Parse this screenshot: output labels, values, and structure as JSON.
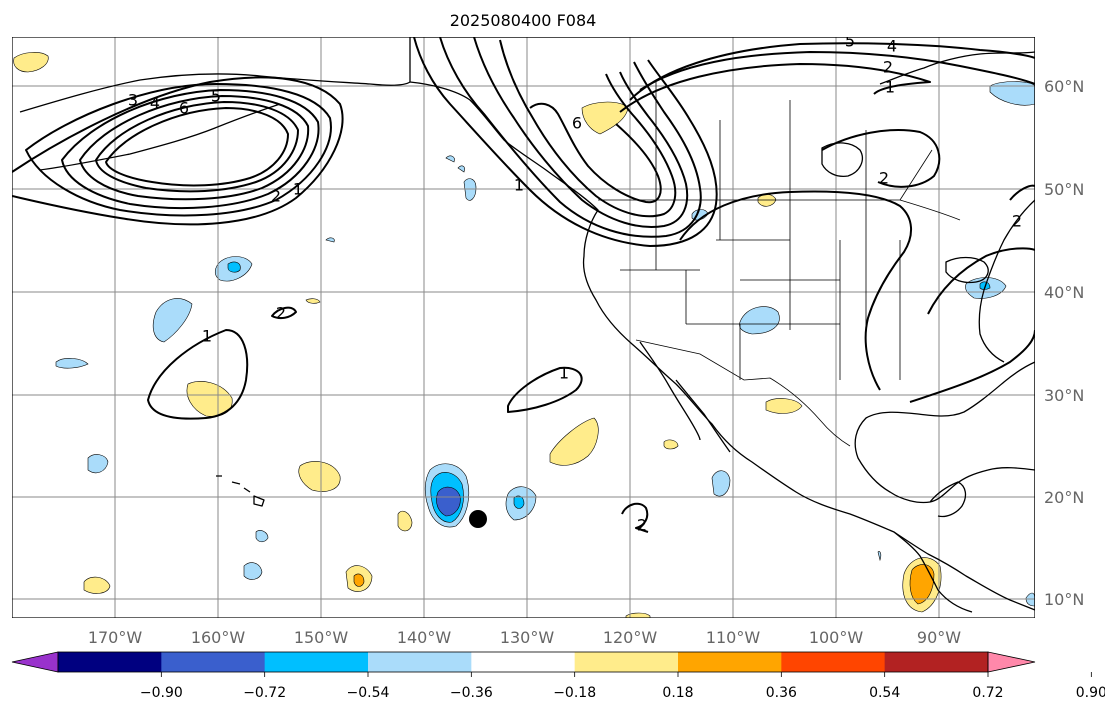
{
  "title": "2025080400 F084",
  "x_axis": {
    "ticks": [
      "170°W",
      "160°W",
      "150°W",
      "140°W",
      "130°W",
      "120°W",
      "110°W",
      "100°W",
      "90°W"
    ]
  },
  "y_axis": {
    "ticks": [
      "60°N",
      "50°N",
      "40°N",
      "30°N",
      "20°N",
      "10°N"
    ]
  },
  "colorbar": {
    "colors": [
      "#9932cc",
      "#000080",
      "#3a5fcd",
      "#00bfff",
      "#aadcfa",
      "#ffffff",
      "#ffec8b",
      "#ffa500",
      "#ff4500",
      "#b22222",
      "#ff88aa"
    ],
    "ticks": [
      "−0.90",
      "−0.72",
      "−0.54",
      "−0.36",
      "−0.18",
      "0.18",
      "0.36",
      "0.54",
      "0.72",
      "0.90"
    ],
    "extend": "both"
  },
  "contour_labels": [
    "3",
    "4",
    "6",
    "5",
    "2",
    "1",
    "2",
    "1",
    "1",
    "6",
    "1",
    "5",
    "4",
    "2",
    "1",
    "2",
    "2",
    "2"
  ],
  "marker": {
    "label": "storm-center",
    "lon": -134.7,
    "lat": 17.7
  },
  "chart_data": {
    "type": "map",
    "projection": "plate-carree",
    "lon_range": [
      -180,
      -80
    ],
    "lat_range": [
      8,
      64
    ],
    "grid": true,
    "title": "2025080400 F084",
    "contour_levels_labeled": [
      1,
      2,
      3,
      4,
      5,
      6
    ],
    "fill_levels": [
      -0.9,
      -0.72,
      -0.54,
      -0.36,
      -0.18,
      0.18,
      0.36,
      0.54,
      0.72,
      0.9
    ]
  }
}
